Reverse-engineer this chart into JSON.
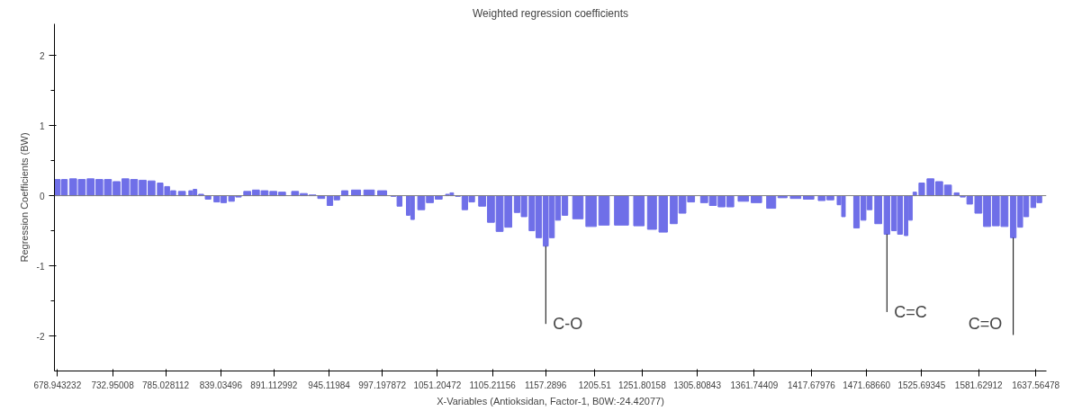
{
  "chart_data": {
    "type": "bar",
    "title": "Weighted regression coefficients",
    "xlabel": "X-Variables (Antioksidan, Factor-1, B0W:-24.42077)",
    "ylabel": "Regression Coefficients (BW)",
    "x": [
      678.9,
      685.8,
      694.3,
      702.8,
      711.4,
      719.9,
      728.4,
      736.9,
      745.5,
      754.0,
      762.5,
      771.1,
      779.6,
      786.4,
      792.4,
      800.9,
      809.4,
      813.7,
      819.7,
      826.5,
      835.0,
      841.8,
      849.5,
      856.3,
      864.9,
      873.4,
      881.9,
      890.5,
      899.0,
      911.8,
      920.3,
      928.8,
      937.4,
      945.9,
      952.7,
      960.4,
      971.5,
      984.3,
      997.1,
      1008.1,
      1014.1,
      1022.6,
      1026.9,
      1035.4,
      1043.9,
      1052.5,
      1061.0,
      1065.3,
      1071.3,
      1078.1,
      1084.9,
      1095.1,
      1103.7,
      1112.2,
      1120.7,
      1129.3,
      1136.1,
      1143.8,
      1150.6,
      1157.4,
      1163.4,
      1169.4,
      1176.2,
      1188.9,
      1201.8,
      1214.5,
      1231.6,
      1248.7,
      1261.5,
      1272.5,
      1282.8,
      1291.3,
      1299.8,
      1312.6,
      1321.2,
      1329.7,
      1338.2,
      1351.0,
      1363.8,
      1378.3,
      1389.4,
      1402.2,
      1415.0,
      1427.8,
      1436.3,
      1444.7,
      1449.1,
      1461.9,
      1468.7,
      1474.7,
      1483.2,
      1491.7,
      1498.6,
      1504.5,
      1510.5,
      1514.8,
      1519.0,
      1525.8,
      1534.4,
      1542.9,
      1551.5,
      1560.0,
      1566.0,
      1572.8,
      1581.3,
      1589.8,
      1598.4,
      1606.9,
      1615.5,
      1622.3,
      1628.2,
      1635.1,
      1641.0
    ],
    "values": [
      0.23,
      0.23,
      0.24,
      0.23,
      0.24,
      0.23,
      0.23,
      0.2,
      0.24,
      0.23,
      0.22,
      0.21,
      0.18,
      0.13,
      0.07,
      0.06,
      0.07,
      0.09,
      0.02,
      -0.05,
      -0.09,
      -0.1,
      -0.08,
      -0.02,
      0.06,
      0.08,
      0.07,
      0.06,
      0.05,
      0.06,
      0.03,
      0.01,
      -0.04,
      -0.14,
      -0.06,
      0.07,
      0.08,
      0.08,
      0.07,
      -0.01,
      -0.15,
      -0.28,
      -0.34,
      -0.2,
      -0.1,
      -0.05,
      0.02,
      0.04,
      -0.01,
      -0.2,
      -0.09,
      -0.15,
      -0.38,
      -0.51,
      -0.45,
      -0.24,
      -0.3,
      -0.5,
      -0.6,
      -0.72,
      -0.6,
      -0.35,
      -0.28,
      -0.33,
      -0.44,
      -0.42,
      -0.42,
      -0.43,
      -0.48,
      -0.52,
      -0.4,
      -0.25,
      -0.09,
      -0.1,
      -0.14,
      -0.16,
      -0.16,
      -0.08,
      -0.1,
      -0.18,
      -0.03,
      -0.04,
      -0.05,
      -0.07,
      -0.06,
      -0.13,
      -0.3,
      -0.46,
      -0.35,
      -0.2,
      -0.4,
      -0.55,
      -0.5,
      -0.55,
      -0.57,
      -0.35,
      0.05,
      0.18,
      0.24,
      0.2,
      0.15,
      0.04,
      -0.02,
      -0.12,
      -0.25,
      -0.44,
      -0.43,
      -0.44,
      -0.6,
      -0.45,
      -0.3,
      -0.17,
      -0.1
    ],
    "color": "#6f6fe8",
    "xlim": [
      676,
      1648
    ],
    "ylim": [
      -2.5,
      2.45
    ],
    "xticks": [
      678.943232,
      732.95008,
      785.028112,
      839.03496,
      891.112992,
      945.11984,
      997.197872,
      1051.20472,
      1105.21156,
      1157.2896,
      1205.51,
      1251.80158,
      1305.80843,
      1361.74409,
      1417.67976,
      {
        "value": 1471.6866,
        "label": "1471.68660"
      },
      1525.69345,
      1581.62912,
      1637.56478
    ],
    "yticks": [
      -2,
      -1,
      0,
      1,
      2
    ],
    "ref_lines": [
      {
        "axis": "y",
        "value": 0,
        "color": "#808080"
      }
    ],
    "annotations": [
      {
        "text": "C-O",
        "x": 1157.4,
        "y": -0.72
      },
      {
        "text": "C=C",
        "x": 1491.7,
        "y": -0.55
      },
      {
        "text": "C=O",
        "x": 1615.5,
        "y": -0.6
      }
    ],
    "grid": false
  }
}
